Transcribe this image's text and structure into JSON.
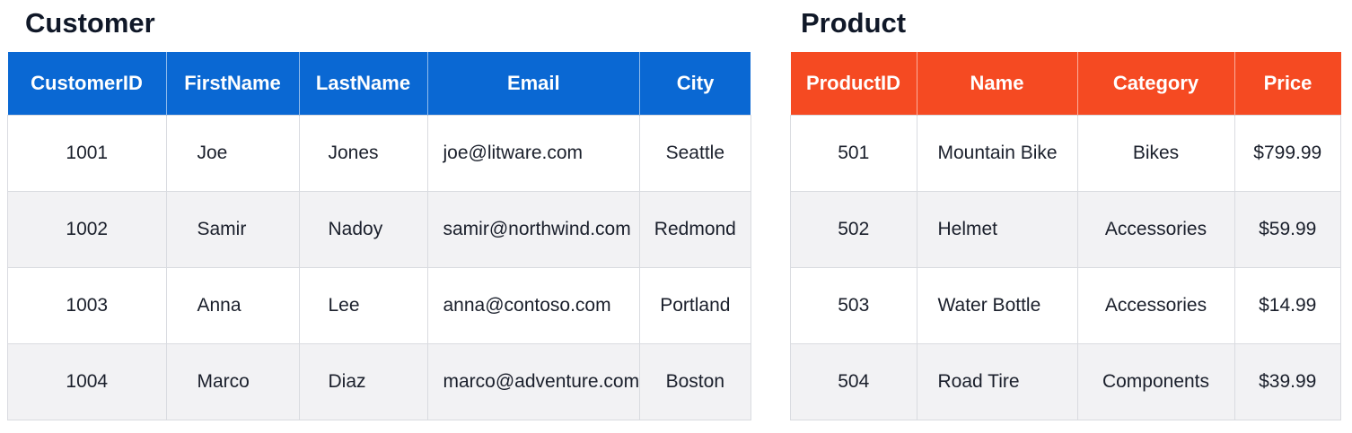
{
  "customer": {
    "title": "Customer",
    "headers": [
      "CustomerID",
      "FirstName",
      "LastName",
      "Email",
      "City"
    ],
    "rows": [
      [
        "1001",
        "Joe",
        "Jones",
        "joe@litware.com",
        "Seattle"
      ],
      [
        "1002",
        "Samir",
        "Nadoy",
        "samir@northwind.com",
        "Redmond"
      ],
      [
        "1003",
        "Anna",
        "Lee",
        "anna@contoso.com",
        "Portland"
      ],
      [
        "1004",
        "Marco",
        "Diaz",
        "marco@adventure.com",
        "Boston"
      ]
    ]
  },
  "product": {
    "title": "Product",
    "headers": [
      "ProductID",
      "Name",
      "Category",
      "Price"
    ],
    "rows": [
      [
        "501",
        "Mountain Bike",
        "Bikes",
        "$799.99"
      ],
      [
        "502",
        "Helmet",
        "Accessories",
        "$59.99"
      ],
      [
        "503",
        "Water Bottle",
        "Accessories",
        "$14.99"
      ],
      [
        "504",
        "Road Tire",
        "Components",
        "$39.99"
      ]
    ]
  }
}
